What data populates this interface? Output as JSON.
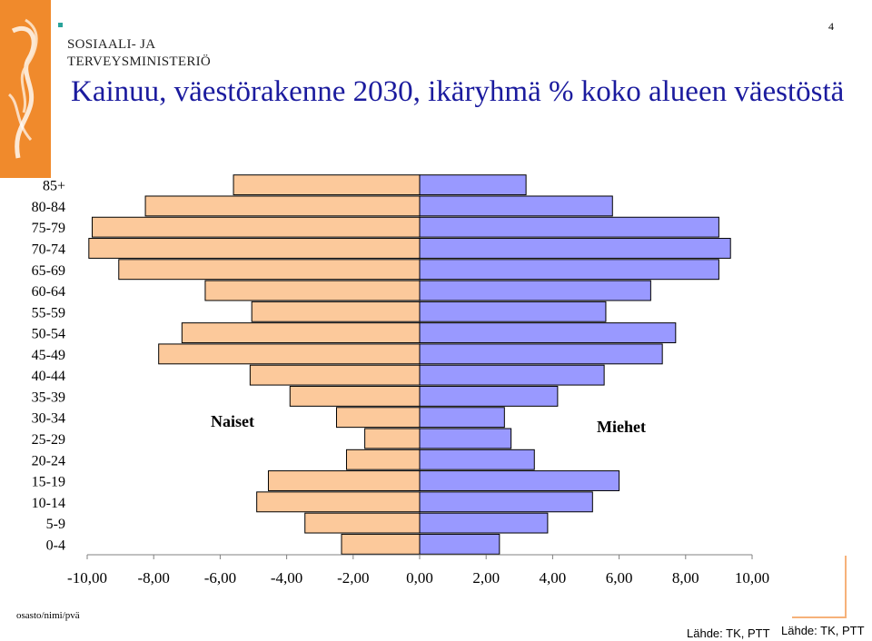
{
  "header": {
    "ministry_line1": "SOSIAALI- JA",
    "ministry_line2": "TERVEYSMINISTERIÖ",
    "page_number": "4",
    "title": "Kainuu, väestörakenne 2030, ikäryhmä % koko alueen väestöstä"
  },
  "footer": {
    "left_text": "osasto/nimi/pvä",
    "source_1": "Lähde: TK, PTT",
    "source_2": "Lähde: TK, PTT"
  },
  "colors": {
    "logo": "#f08a2c",
    "title": "#1b1b9e",
    "women": "#fcc99b",
    "men": "#9999ff"
  },
  "icons": [
    "ministry-logo-icon",
    "bullet-icon"
  ],
  "chart_data": {
    "type": "bar",
    "orientation": "horizontal",
    "categories": [
      "0-4",
      "5-9",
      "10-14",
      "15-19",
      "20-24",
      "25-29",
      "30-34",
      "35-39",
      "40-44",
      "45-49",
      "50-54",
      "55-59",
      "60-64",
      "65-69",
      "70-74",
      "75-79",
      "80-84",
      "85+"
    ],
    "series": [
      {
        "name": "Naiset",
        "values": [
          -2.35,
          -3.45,
          -4.9,
          -4.55,
          -2.2,
          -1.65,
          -2.5,
          -3.9,
          -5.1,
          -7.85,
          -7.15,
          -5.05,
          -6.45,
          -9.05,
          -9.95,
          -9.85,
          -8.25,
          -5.6
        ]
      },
      {
        "name": "Miehet",
        "values": [
          2.4,
          3.85,
          5.2,
          6.0,
          3.45,
          2.75,
          2.55,
          4.15,
          5.55,
          7.3,
          7.7,
          5.6,
          6.95,
          9.0,
          9.35,
          9.0,
          5.8,
          3.2
        ]
      }
    ],
    "xlim": [
      -10,
      10
    ],
    "xticks": [
      "-10,00",
      "-8,00",
      "-6,00",
      "-4,00",
      "-2,00",
      "0,00",
      "2,00",
      "4,00",
      "6,00",
      "8,00",
      "10,00"
    ],
    "xlabel": "",
    "ylabel": "",
    "grid": false,
    "stacked_diverging": true
  }
}
